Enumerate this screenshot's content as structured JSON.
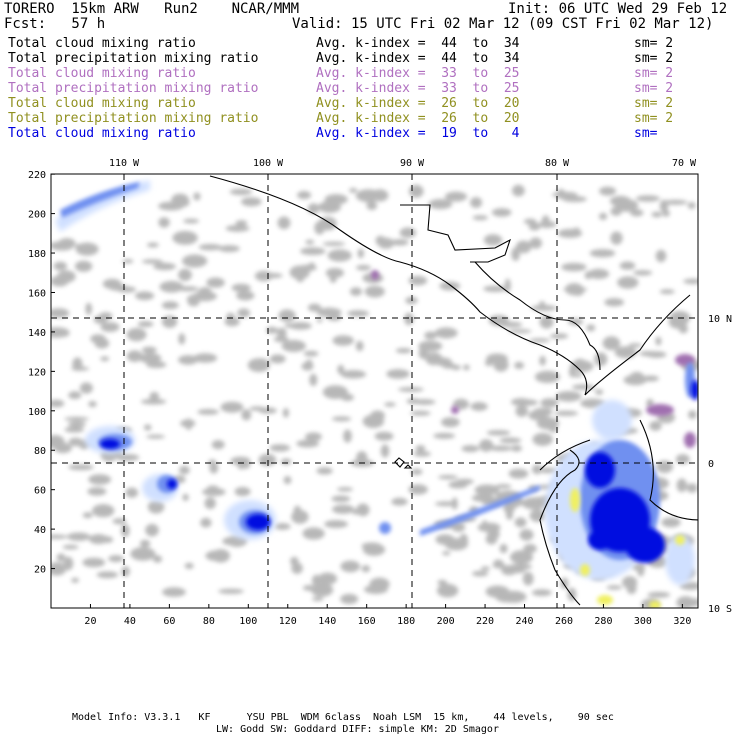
{
  "header": {
    "model": "TORERO  15km ARW   Run2    NCAR/MMM",
    "init": "Init: 06 UTC Wed 29 Feb 12",
    "fcst": "Fcst:   57 h",
    "valid": "Valid: 15 UTC Fri 02 Mar 12 (09 CST Fri 02 Mar 12)"
  },
  "legend": [
    {
      "field": "Total cloud mixing ratio",
      "kindex": "Avg. k-index =  44  to  34",
      "sm": "sm= 2",
      "color": "#000000"
    },
    {
      "field": "Total precipitation mixing ratio",
      "kindex": "Avg. k-index =  44  to  34",
      "sm": "sm= 2",
      "color": "#000000"
    },
    {
      "field": "Total cloud mixing ratio",
      "kindex": "Avg. k-index =  33  to  25",
      "sm": "sm= 2",
      "color": "#b070c0"
    },
    {
      "field": "Total precipitation mixing ratio",
      "kindex": "Avg. k-index =  33  to  25",
      "sm": "sm= 2",
      "color": "#b070c0"
    },
    {
      "field": "Total cloud mixing ratio",
      "kindex": "Avg. k-index =  26  to  20",
      "sm": "sm= 2",
      "color": "#909020"
    },
    {
      "field": "Total precipitation mixing ratio",
      "kindex": "Avg. k-index =  26  to  20",
      "sm": "sm= 2",
      "color": "#909020"
    },
    {
      "field": "Total cloud mixing ratio",
      "kindex": "Avg. k-index =  19  to   4",
      "sm": "sm=",
      "color": "#0000e0"
    }
  ],
  "map": {
    "lon_labels": [
      "110 W",
      "100 W",
      "90 W",
      "80 W",
      "70 W"
    ],
    "lat_labels": [
      "10 N",
      "0",
      "10 S"
    ],
    "grid_x_ticks": [
      "20",
      "40",
      "60",
      "80",
      "100",
      "120",
      "140",
      "160",
      "180",
      "200",
      "220",
      "240",
      "260",
      "280",
      "300",
      "320"
    ],
    "grid_y_ticks": [
      "20",
      "40",
      "60",
      "80",
      "100",
      "120",
      "140",
      "160",
      "180",
      "200",
      "220"
    ],
    "colors": {
      "land_cloud_gray": "#b0b0b0",
      "shallow_blue": "#d0e0ff",
      "mid_blue": "#7090f0",
      "deep_blue": "#0010e0",
      "purple": "#a070b0",
      "yellow": "#f0f060"
    }
  },
  "footer": {
    "line1": "Model Info: V3.3.1   KF      YSU PBL  WDM 6class  Noah LSM  15 km,    44 levels,    90 sec",
    "line2": "LW: Godd SW: Goddard DIFF: simple KM: 2D Smagor"
  }
}
